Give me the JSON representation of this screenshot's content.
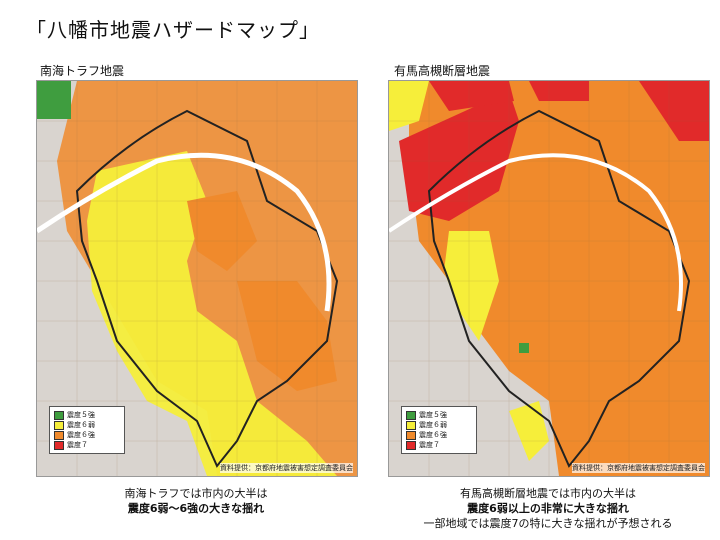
{
  "title": "「八幡市地震ハザードマップ」",
  "colors": {
    "intensity_5strong": "#3f9d3f",
    "intensity_6weak": "#f6ee3a",
    "intensity_6strong": "#f08a2c",
    "intensity_7": "#e12a2a"
  },
  "legend": {
    "items": [
      "震度５強",
      "震度６弱",
      "震度６強",
      "震度７"
    ]
  },
  "source": "資料提供：京都府地震被害想定調査委員会",
  "left": {
    "label": "南海トラフ地震",
    "caption_line1": "南海トラフでは市内の大半は",
    "caption_line2": "震度6弱〜6強の大きな揺れ"
  },
  "right": {
    "label": "有馬高槻断層地震",
    "caption_line1": "有馬高槻断層地震では市内の大半は",
    "caption_line2": "震度6弱以上の非常に大きな揺れ",
    "caption_line3": "一部地域では震度7の特に大きな揺れが予想される"
  }
}
